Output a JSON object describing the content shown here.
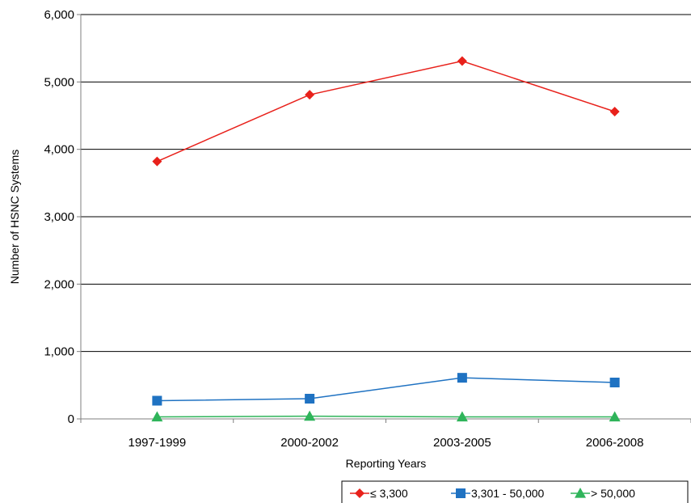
{
  "chart_data": {
    "type": "line",
    "title": "",
    "xlabel": "Reporting Years",
    "ylabel": "Number of HSNC Systems",
    "categories": [
      "1997-1999",
      "2000-2002",
      "2003-2005",
      "2006-2008"
    ],
    "ylim": [
      0,
      6000
    ],
    "yticks": [
      0,
      1000,
      2000,
      3000,
      4000,
      5000,
      6000
    ],
    "ytick_labels": [
      "0",
      "1,000",
      "2,000",
      "3,000",
      "4,000",
      "5,000",
      "6,000"
    ],
    "grid": "horizontal",
    "legend_position": "bottom-right",
    "series": [
      {
        "name": "≤ 3,300",
        "color": "#e8211b",
        "marker": "diamond",
        "values": [
          3820,
          4810,
          5310,
          4560
        ]
      },
      {
        "name": "3,301 - 50,000",
        "color": "#1f72c2",
        "marker": "square",
        "values": [
          270,
          300,
          610,
          540
        ]
      },
      {
        "name": "> 50,000",
        "color": "#2fb45a",
        "marker": "triangle",
        "values": [
          30,
          40,
          30,
          30
        ]
      }
    ]
  }
}
